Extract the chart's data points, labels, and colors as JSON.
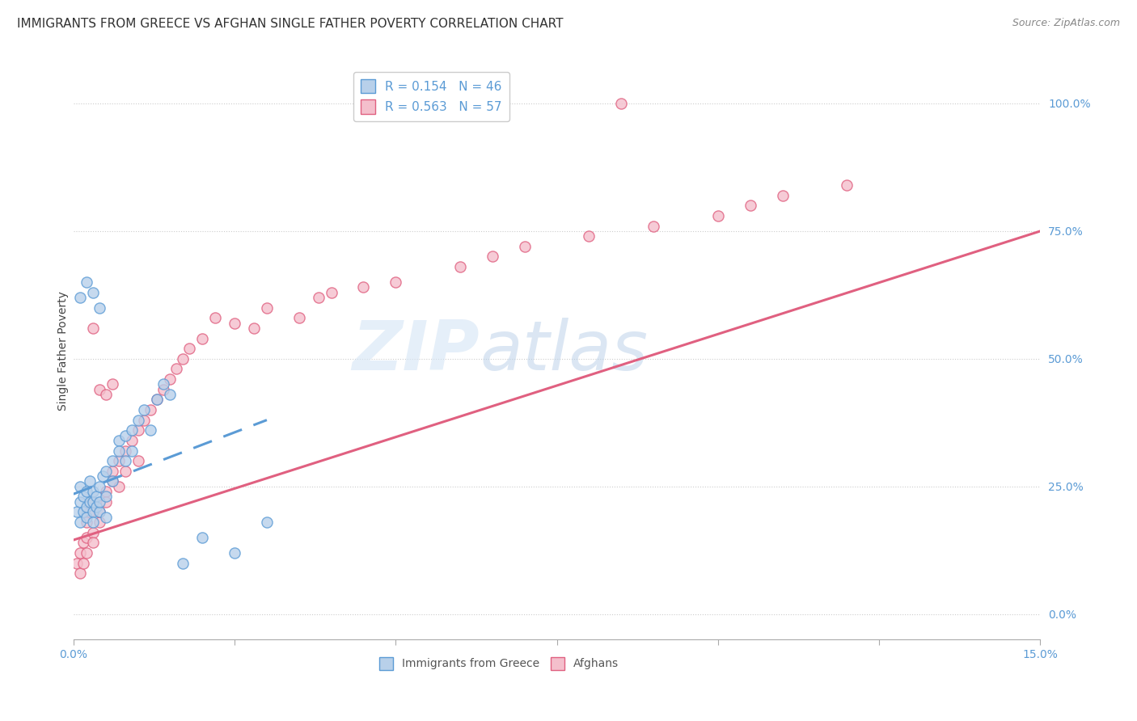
{
  "title": "IMMIGRANTS FROM GREECE VS AFGHAN SINGLE FATHER POVERTY CORRELATION CHART",
  "source": "Source: ZipAtlas.com",
  "ylabel": "Single Father Poverty",
  "ytick_labels": [
    "0.0%",
    "25.0%",
    "50.0%",
    "75.0%",
    "100.0%"
  ],
  "ytick_positions": [
    0.0,
    0.25,
    0.5,
    0.75,
    1.0
  ],
  "xlim": [
    0.0,
    0.15
  ],
  "ylim": [
    -0.05,
    1.08
  ],
  "legend1_text": "R = 0.154   N = 46",
  "legend2_text": "R = 0.563   N = 57",
  "greece_color": "#b8d0ea",
  "greece_edge_color": "#5b9bd5",
  "afghan_color": "#f4bfcc",
  "afghan_edge_color": "#e06080",
  "greece_line_color": "#5b9bd5",
  "afghan_line_color": "#e06080",
  "tick_color": "#5b9bd5",
  "watermark_color": "#d0dff0",
  "title_fontsize": 11,
  "label_fontsize": 10,
  "tick_fontsize": 10,
  "greece_scatter_x": [
    0.0005,
    0.001,
    0.001,
    0.001,
    0.0015,
    0.0015,
    0.002,
    0.002,
    0.002,
    0.0025,
    0.0025,
    0.003,
    0.003,
    0.003,
    0.003,
    0.0035,
    0.0035,
    0.004,
    0.004,
    0.004,
    0.0045,
    0.005,
    0.005,
    0.005,
    0.006,
    0.006,
    0.007,
    0.007,
    0.008,
    0.008,
    0.009,
    0.009,
    0.01,
    0.011,
    0.012,
    0.013,
    0.014,
    0.015,
    0.017,
    0.02,
    0.025,
    0.03,
    0.001,
    0.002,
    0.003,
    0.004
  ],
  "greece_scatter_y": [
    0.2,
    0.22,
    0.18,
    0.25,
    0.23,
    0.2,
    0.19,
    0.21,
    0.24,
    0.22,
    0.26,
    0.2,
    0.18,
    0.22,
    0.24,
    0.23,
    0.21,
    0.2,
    0.25,
    0.22,
    0.27,
    0.28,
    0.23,
    0.19,
    0.3,
    0.26,
    0.34,
    0.32,
    0.35,
    0.3,
    0.36,
    0.32,
    0.38,
    0.4,
    0.36,
    0.42,
    0.45,
    0.43,
    0.1,
    0.15,
    0.12,
    0.18,
    0.62,
    0.65,
    0.63,
    0.6
  ],
  "afghan_scatter_x": [
    0.0005,
    0.001,
    0.001,
    0.0015,
    0.0015,
    0.002,
    0.002,
    0.002,
    0.0025,
    0.003,
    0.003,
    0.003,
    0.004,
    0.004,
    0.005,
    0.005,
    0.006,
    0.006,
    0.007,
    0.007,
    0.008,
    0.008,
    0.009,
    0.01,
    0.01,
    0.011,
    0.012,
    0.013,
    0.014,
    0.015,
    0.016,
    0.017,
    0.018,
    0.02,
    0.022,
    0.025,
    0.028,
    0.03,
    0.035,
    0.038,
    0.04,
    0.045,
    0.05,
    0.06,
    0.065,
    0.07,
    0.08,
    0.09,
    0.1,
    0.105,
    0.11,
    0.12,
    0.003,
    0.004,
    0.005,
    0.006,
    0.085
  ],
  "afghan_scatter_y": [
    0.1,
    0.08,
    0.12,
    0.14,
    0.1,
    0.15,
    0.12,
    0.18,
    0.2,
    0.16,
    0.14,
    0.22,
    0.18,
    0.2,
    0.24,
    0.22,
    0.26,
    0.28,
    0.3,
    0.25,
    0.32,
    0.28,
    0.34,
    0.36,
    0.3,
    0.38,
    0.4,
    0.42,
    0.44,
    0.46,
    0.48,
    0.5,
    0.52,
    0.54,
    0.58,
    0.57,
    0.56,
    0.6,
    0.58,
    0.62,
    0.63,
    0.64,
    0.65,
    0.68,
    0.7,
    0.72,
    0.74,
    0.76,
    0.78,
    0.8,
    0.82,
    0.84,
    0.56,
    0.44,
    0.43,
    0.45,
    1.0
  ],
  "greece_line_x": [
    0.0,
    0.03
  ],
  "greece_line_y": [
    0.235,
    0.38
  ],
  "afghan_line_x": [
    0.0,
    0.15
  ],
  "afghan_line_y": [
    0.145,
    0.75
  ]
}
